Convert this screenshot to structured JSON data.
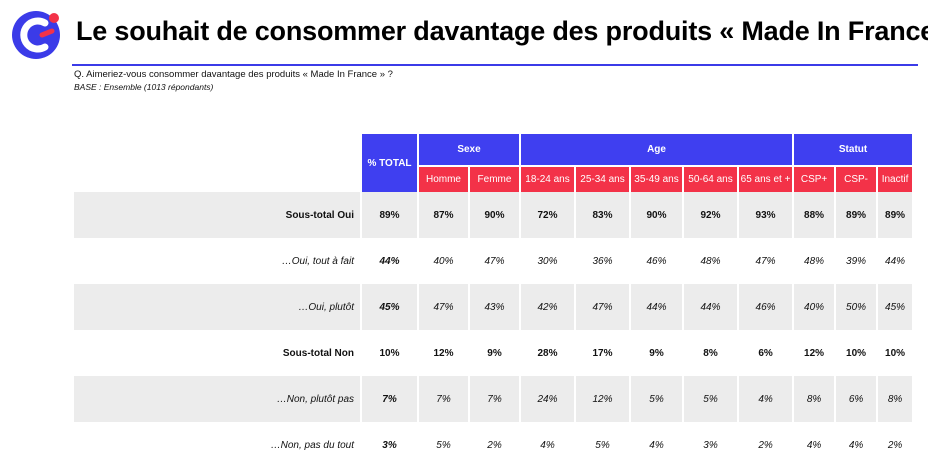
{
  "title": "Le souhait de consommer davantage des produits « Made In France »",
  "question": "Q. Aimeriez-vous consommer davantage des produits « Made In France » ?",
  "base": "BASE : Ensemble (1013 répondants)",
  "colors": {
    "header_blue": "#3f3ff0",
    "header_red": "#f33248",
    "row_shade": "#ececec",
    "logo_blue": "#3b3be8"
  },
  "logo": {
    "icon": "c-letter-logo-icon"
  },
  "table": {
    "total_label": "% TOTAL",
    "groups": [
      {
        "label": "Sexe",
        "columns": [
          "Homme",
          "Femme"
        ]
      },
      {
        "label": "Age",
        "columns": [
          "18-24 ans",
          "25-34 ans",
          "35-49 ans",
          "50-64 ans",
          "65 ans et +"
        ]
      },
      {
        "label": "Statut",
        "columns": [
          "CSP+",
          "CSP-",
          "Inactif"
        ]
      }
    ],
    "rows": [
      {
        "label": "Sous-total Oui",
        "values": [
          "89%",
          "87%",
          "90%",
          "72%",
          "83%",
          "90%",
          "92%",
          "93%",
          "88%",
          "89%",
          "89%"
        ]
      },
      {
        "label": "…Oui, tout à fait",
        "values": [
          "44%",
          "40%",
          "47%",
          "30%",
          "36%",
          "46%",
          "48%",
          "47%",
          "48%",
          "39%",
          "44%"
        ]
      },
      {
        "label": "…Oui, plutôt",
        "values": [
          "45%",
          "47%",
          "43%",
          "42%",
          "47%",
          "44%",
          "44%",
          "46%",
          "40%",
          "50%",
          "45%"
        ]
      },
      {
        "label": "Sous-total Non",
        "values": [
          "10%",
          "12%",
          "9%",
          "28%",
          "17%",
          "9%",
          "8%",
          "6%",
          "12%",
          "10%",
          "10%"
        ]
      },
      {
        "label": "…Non, plutôt pas",
        "values": [
          "7%",
          "7%",
          "7%",
          "24%",
          "12%",
          "5%",
          "5%",
          "4%",
          "8%",
          "6%",
          "8%"
        ]
      },
      {
        "label": "…Non, pas du tout",
        "values": [
          "3%",
          "5%",
          "2%",
          "4%",
          "5%",
          "4%",
          "3%",
          "2%",
          "4%",
          "4%",
          "2%"
        ]
      }
    ]
  }
}
